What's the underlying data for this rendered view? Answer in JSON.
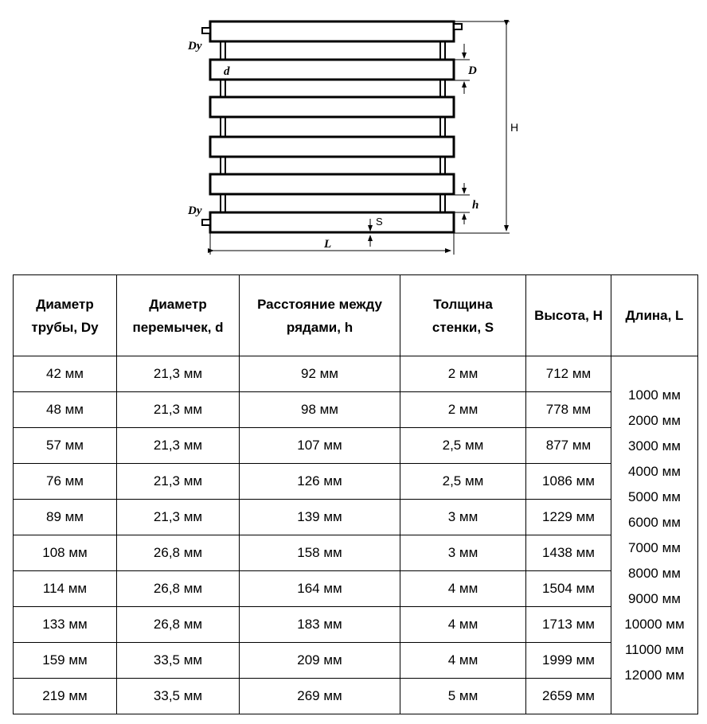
{
  "diagram": {
    "labels": {
      "dy_top": "Dy",
      "dy_bottom": "Dy",
      "d": "d",
      "D": "D",
      "H": "H",
      "h": "h",
      "S": "S",
      "L": "L"
    }
  },
  "table": {
    "headers": [
      "Диаметр трубы, Dy",
      "Диаметр перемычек, d",
      "Расстояние между рядами, h",
      "Толщина стенки, S",
      "Высота, H",
      "Длина, L"
    ],
    "header_lines": [
      [
        "Диаметр",
        "трубы, Dy"
      ],
      [
        "Диаметр",
        "перемычек, d"
      ],
      [
        "Расстояние между",
        "рядами, h"
      ],
      [
        "Толщина",
        "стенки, S"
      ],
      [
        "Высота, H"
      ],
      [
        "Длина, L"
      ]
    ],
    "rows": [
      [
        "42 мм",
        "21,3 мм",
        "92 мм",
        "2 мм",
        "712 мм"
      ],
      [
        "48 мм",
        "21,3 мм",
        "98 мм",
        "2 мм",
        "778 мм"
      ],
      [
        "57 мм",
        "21,3 мм",
        "107 мм",
        "2,5 мм",
        "877 мм"
      ],
      [
        "76 мм",
        "21,3 мм",
        "126 мм",
        "2,5 мм",
        "1086 мм"
      ],
      [
        "89 мм",
        "21,3 мм",
        "139 мм",
        "3 мм",
        "1229 мм"
      ],
      [
        "108 мм",
        "26,8 мм",
        "158 мм",
        "3 мм",
        "1438 мм"
      ],
      [
        "114 мм",
        "26,8 мм",
        "164 мм",
        "4 мм",
        "1504 мм"
      ],
      [
        "133 мм",
        "26,8 мм",
        "183 мм",
        "4 мм",
        "1713 мм"
      ],
      [
        "159 мм",
        "33,5 мм",
        "209 мм",
        "4 мм",
        "1999 мм"
      ],
      [
        "219 мм",
        "33,5 мм",
        "269 мм",
        "5 мм",
        "2659 мм"
      ]
    ],
    "lengths": [
      "1000 мм",
      "2000 мм",
      "3000 мм",
      "4000 мм",
      "5000 мм",
      "6000 мм",
      "7000 мм",
      "8000 мм",
      "9000 мм",
      "10000 мм",
      "11000 мм",
      "12000 мм"
    ]
  }
}
